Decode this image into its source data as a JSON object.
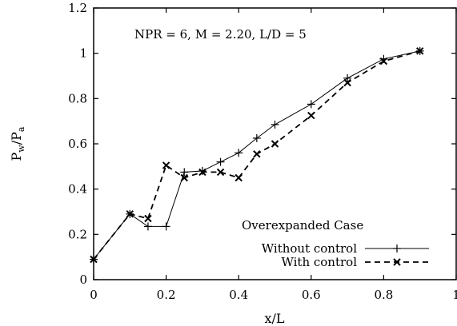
{
  "chart_data": {
    "type": "line",
    "title": "",
    "annotation": "NPR = 6, M = 2.20, L/D = 5",
    "xlabel": "x/L",
    "ylabel_main": "P",
    "ylabel_sub1": "w",
    "ylabel_sep": "/",
    "ylabel_main2": "P",
    "ylabel_sub2": "a",
    "xlim": [
      0,
      1
    ],
    "ylim": [
      0,
      1.2
    ],
    "x_ticks": [
      0,
      0.2,
      0.4,
      0.6,
      0.8,
      1
    ],
    "x_tick_labels": [
      "0",
      "0.2",
      "0.4",
      "0.6",
      "0.8",
      "1"
    ],
    "y_ticks": [
      0,
      0.2,
      0.4,
      0.6,
      0.8,
      1,
      1.2
    ],
    "y_tick_labels": [
      "0",
      "0.2",
      "0.4",
      "0.6",
      "0.8",
      "1",
      "1.2"
    ],
    "grid": false,
    "legend_title": "Overexpanded Case",
    "legend_position": "bottom-right",
    "series": [
      {
        "name": "Without control",
        "marker": "plus",
        "line_style": "solid",
        "x": [
          0,
          0.1,
          0.15,
          0.2,
          0.25,
          0.3,
          0.35,
          0.4,
          0.45,
          0.5,
          0.6,
          0.7,
          0.8,
          0.9
        ],
        "y": [
          0.09,
          0.29,
          0.235,
          0.235,
          0.475,
          0.48,
          0.52,
          0.56,
          0.625,
          0.685,
          0.775,
          0.89,
          0.975,
          1.01
        ]
      },
      {
        "name": "With control",
        "marker": "x",
        "line_style": "dashed",
        "x": [
          0,
          0.1,
          0.15,
          0.2,
          0.25,
          0.3,
          0.35,
          0.4,
          0.45,
          0.5,
          0.6,
          0.7,
          0.8,
          0.9
        ],
        "y": [
          0.09,
          0.29,
          0.27,
          0.505,
          0.45,
          0.475,
          0.475,
          0.45,
          0.555,
          0.6,
          0.725,
          0.87,
          0.965,
          1.01
        ]
      }
    ]
  }
}
